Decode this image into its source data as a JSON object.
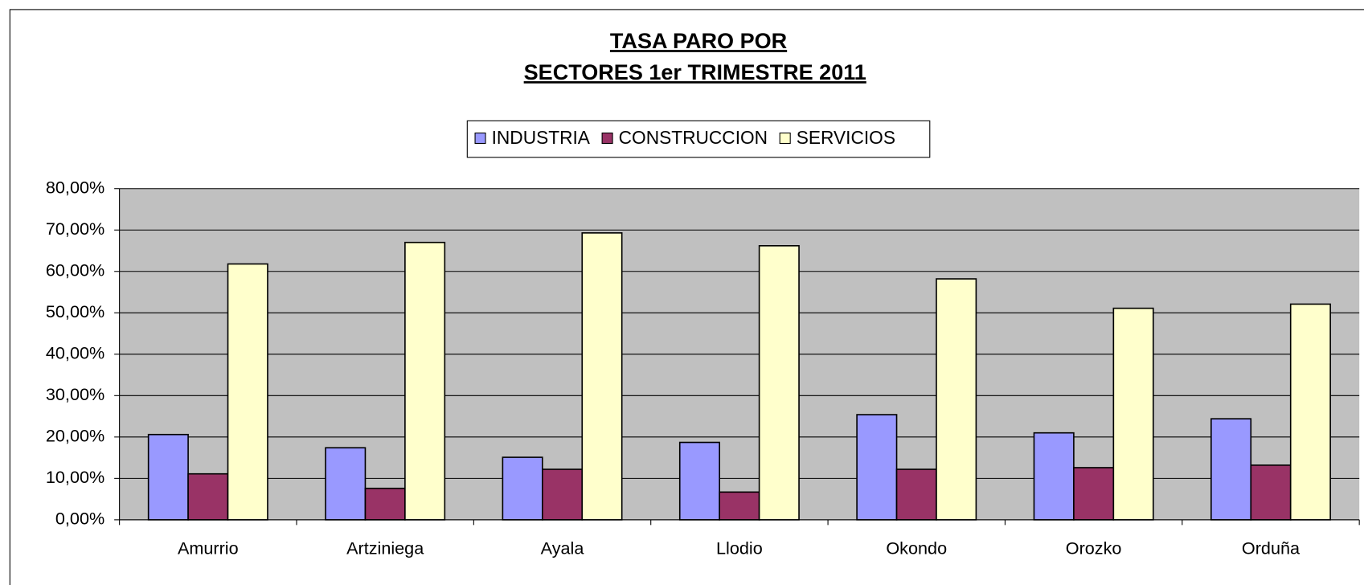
{
  "chart_data": {
    "type": "bar",
    "title": [
      "TASA PARO POR",
      "SECTORES 1er TRIMESTRE 2011"
    ],
    "categories": [
      "Amurrio",
      "Artziniega",
      "Ayala",
      "Llodio",
      "Okondo",
      "Orozko",
      "Orduña"
    ],
    "series": [
      {
        "name": "INDUSTRIA",
        "color": "#9999ff",
        "values": [
          20.6,
          17.4,
          15.1,
          18.7,
          25.4,
          21.0,
          24.4
        ]
      },
      {
        "name": "CONSTRUCCION",
        "color": "#993366",
        "values": [
          11.1,
          7.6,
          12.2,
          6.7,
          12.2,
          12.6,
          13.2
        ]
      },
      {
        "name": "SERVICIOS",
        "color": "#ffffcc",
        "values": [
          61.8,
          67.0,
          69.3,
          66.2,
          58.2,
          51.1,
          52.1
        ]
      }
    ],
    "ylim": [
      0,
      80
    ],
    "yticks": [
      {
        "value": 0,
        "label": "0,00%"
      },
      {
        "value": 10,
        "label": "10,00%"
      },
      {
        "value": 20,
        "label": "20,00%"
      },
      {
        "value": 30,
        "label": "30,00%"
      },
      {
        "value": 40,
        "label": "40,00%"
      },
      {
        "value": 50,
        "label": "50,00%"
      },
      {
        "value": 60,
        "label": "60,00%"
      },
      {
        "value": 70,
        "label": "70,00%"
      },
      {
        "value": 80,
        "label": "80,00%"
      }
    ],
    "grid": true,
    "legend": "top"
  }
}
